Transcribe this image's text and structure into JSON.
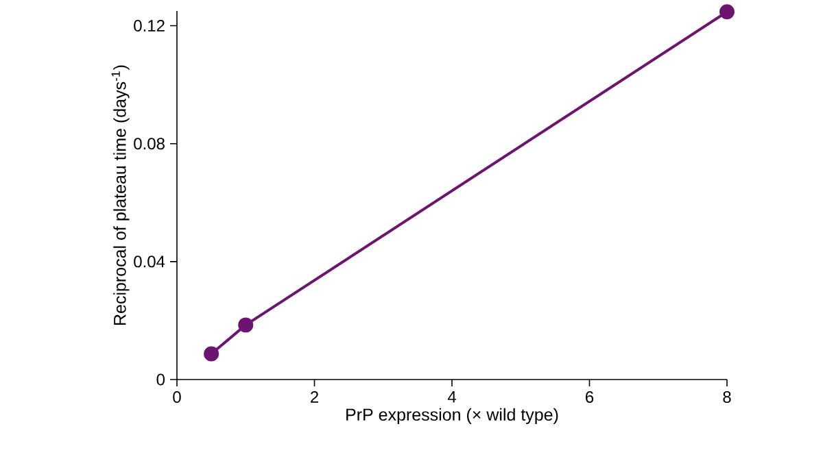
{
  "chart_data": {
    "type": "line",
    "xlabel": "PrP expression (× wild type)",
    "ylabel": "Reciprocal of plateau time (days$^{-1}$)",
    "x": [
      0.5,
      1,
      8
    ],
    "series": [
      {
        "color": "#6c1570",
        "values": [
          0.0087,
          0.0185,
          0.1247
        ]
      }
    ],
    "xlim": [
      0,
      8
    ],
    "ylim": [
      0,
      0.125
    ],
    "xticks": [
      0,
      2,
      4,
      6,
      8
    ],
    "yticks": [
      0,
      0.04,
      0.08,
      0.12
    ],
    "marker": "circle",
    "line_style": "solid",
    "grid": false
  }
}
